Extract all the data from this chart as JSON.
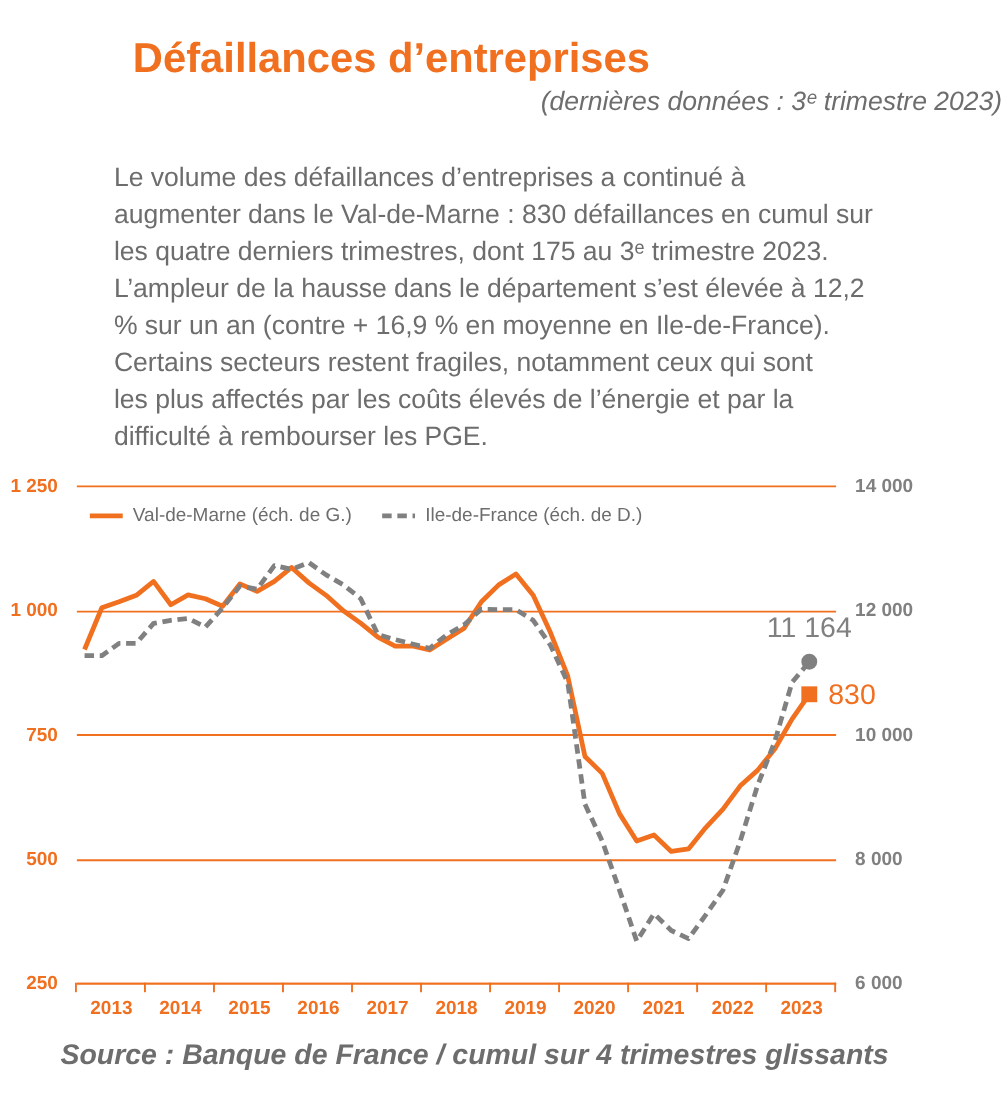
{
  "chart_data": {
    "type": "line",
    "title": "Défaillances d’entreprises",
    "subtitle": "(dernières données : 3ᵉ trimestre 2023)",
    "annotations": [
      "Le volume des défaillances d’entreprises a continué à augmenter dans le Val-de-Marne : 830 défaillances en cumul sur les quatre derniers trimestres, dont 175 au 3ᵉ trimestre 2023. L’ampleur de la hausse dans le département s’est élevée à 12,2 % sur un an (contre + 16,9 % en moyenne en Ile-de-France). Certains secteurs restent fragiles, notamment ceux qui sont les plus affectés par les coûts élevés de l’énergie et par la difficulté à rembourser les PGE.",
      "Source : Banque de France / cumul sur 4 trimestres glissants"
    ],
    "x": [
      2013.125,
      2013.375,
      2013.625,
      2013.875,
      2014.125,
      2014.375,
      2014.625,
      2014.875,
      2015.125,
      2015.375,
      2015.625,
      2015.875,
      2016.125,
      2016.375,
      2016.625,
      2016.875,
      2017.125,
      2017.375,
      2017.625,
      2017.875,
      2018.125,
      2018.375,
      2018.625,
      2018.875,
      2019.125,
      2019.375,
      2019.625,
      2019.875,
      2020.125,
      2020.375,
      2020.625,
      2020.875,
      2021.125,
      2021.375,
      2021.625,
      2021.875,
      2022.125,
      2022.375,
      2022.625,
      2022.875,
      2023.125,
      2023.375,
      2023.625
    ],
    "xlim": [
      2013,
      2024
    ],
    "xticks": [
      {
        "value": 2013,
        "label": null
      },
      {
        "value": 2013.5,
        "label": "2013"
      },
      {
        "value": 2014,
        "label": null
      },
      {
        "value": 2014.5,
        "label": "2014"
      },
      {
        "value": 2015,
        "label": null
      },
      {
        "value": 2015.5,
        "label": "2015"
      },
      {
        "value": 2016,
        "label": null
      },
      {
        "value": 2016.5,
        "label": "2016"
      },
      {
        "value": 2017,
        "label": null
      },
      {
        "value": 2017.5,
        "label": "2017"
      },
      {
        "value": 2018,
        "label": null
      },
      {
        "value": 2018.5,
        "label": "2018"
      },
      {
        "value": 2019,
        "label": null
      },
      {
        "value": 2019.5,
        "label": "2019"
      },
      {
        "value": 2020,
        "label": null
      },
      {
        "value": 2020.5,
        "label": "2020"
      },
      {
        "value": 2021,
        "label": null
      },
      {
        "value": 2021.5,
        "label": "2021"
      },
      {
        "value": 2022,
        "label": null
      },
      {
        "value": 2022.5,
        "label": "2022"
      },
      {
        "value": 2023,
        "label": null
      },
      {
        "value": 2023.5,
        "label": "2023"
      },
      {
        "value": 2024,
        "label": null
      }
    ],
    "ylim": [
      250,
      1250
    ],
    "yticks": [
      {
        "value": 250,
        "label": "250"
      },
      {
        "value": 500,
        "label": "500"
      },
      {
        "value": 750,
        "label": "750"
      },
      {
        "value": 1000,
        "label": "1 000"
      },
      {
        "value": 1250,
        "label": "1 250"
      }
    ],
    "y2lim": [
      6000,
      14000
    ],
    "y2ticks": [
      {
        "value": 6000,
        "label": "6 000"
      },
      {
        "value": 8000,
        "label": "8 000"
      },
      {
        "value": 10000,
        "label": "10 000"
      },
      {
        "value": 12000,
        "label": "12 000"
      },
      {
        "value": 14000,
        "label": "14 000"
      }
    ],
    "grid": "y",
    "legend": "top left",
    "series": [
      {
        "name": "Val-de-Marne (éch. de G.)",
        "color": "#f07020",
        "line_style": "solid",
        "values": [
          920,
          1004,
          1016,
          1029,
          1057,
          1010,
          1030,
          1022,
          1007,
          1052,
          1037,
          1057,
          1085,
          1054,
          1029,
          998,
          973,
          945,
          927,
          927,
          919,
          941,
          963,
          1016,
          1050,
          1072,
          1029,
          954,
          867,
          705,
          671,
          590,
          535,
          547,
          514,
          519,
          562,
          599,
          646,
          677,
          720,
          780,
          830
        ],
        "value_labels": [
          null,
          null,
          null,
          null,
          null,
          null,
          null,
          null,
          null,
          null,
          null,
          null,
          null,
          null,
          null,
          null,
          null,
          null,
          null,
          null,
          null,
          null,
          null,
          null,
          null,
          null,
          null,
          null,
          null,
          null,
          null,
          null,
          null,
          null,
          null,
          null,
          null,
          null,
          null,
          null,
          null,
          null,
          "830"
        ]
      },
      {
        "name": "Ile-de-France (éch. de D.)",
        "color": "#808080",
        "line_style": "dashed",
        "axis": "y2",
        "values": [
          11260,
          11260,
          11460,
          11460,
          11780,
          11830,
          11860,
          11720,
          12030,
          12380,
          12330,
          12710,
          12650,
          12760,
          12560,
          12400,
          12180,
          11600,
          11520,
          11450,
          11380,
          11600,
          11760,
          12010,
          12000,
          12000,
          11830,
          11430,
          10830,
          8870,
          8280,
          7490,
          6670,
          7110,
          6840,
          6710,
          7090,
          7490,
          8280,
          9170,
          9880,
          10830,
          11164
        ],
        "value_labels": [
          null,
          null,
          null,
          null,
          null,
          null,
          null,
          null,
          null,
          null,
          null,
          null,
          null,
          null,
          null,
          null,
          null,
          null,
          null,
          null,
          null,
          null,
          null,
          null,
          null,
          null,
          null,
          null,
          null,
          null,
          null,
          null,
          null,
          null,
          null,
          null,
          null,
          null,
          null,
          null,
          null,
          null,
          "11 164"
        ]
      }
    ]
  }
}
